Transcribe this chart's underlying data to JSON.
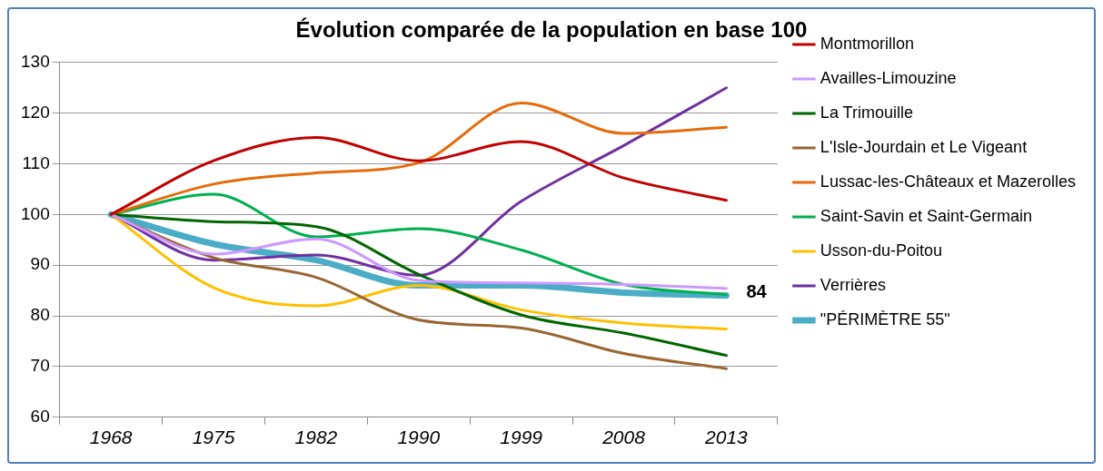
{
  "chart_data": {
    "type": "line",
    "title": "Évolution comparée de la population en base 100",
    "categories": [
      "1968",
      "1975",
      "1982",
      "1990",
      "1999",
      "2008",
      "2013"
    ],
    "ylim": [
      60,
      130
    ],
    "yticks": [
      60,
      70,
      80,
      90,
      100,
      110,
      120,
      130
    ],
    "grid": "y",
    "legend": "right",
    "marker": "none",
    "series": [
      {
        "name": "Montmorillon",
        "color": "#c00000",
        "values": [
          100,
          110.6,
          115.2,
          110.6,
          114.4,
          107.2,
          102.8
        ]
      },
      {
        "name": "Availles-Limouzine",
        "color": "#cc99ff",
        "values": [
          100,
          92.2,
          95.2,
          87,
          86.5,
          86.2,
          85.4
        ]
      },
      {
        "name": "La Trimouille",
        "color": "#006600",
        "values": [
          100,
          98.6,
          97.6,
          88.2,
          80.2,
          76.6,
          72.2
        ]
      },
      {
        "name": "L'Isle-Jourdain et Le Vigeant",
        "color": "#996633",
        "values": [
          100,
          91.5,
          87.6,
          79.2,
          77.6,
          72.6,
          69.6
        ]
      },
      {
        "name": "Lussac-les-Châteaux et Mazerolles",
        "color": "#e46c0a",
        "values": [
          100,
          106,
          108.2,
          110.2,
          122,
          116,
          117.2
        ]
      },
      {
        "name": "Saint-Savin et Saint-Germain",
        "color": "#00b050",
        "values": [
          100,
          104,
          95.6,
          97.2,
          93,
          86.2,
          84.2
        ]
      },
      {
        "name": "Usson-du-Poitou",
        "color": "#ffc000",
        "values": [
          100,
          85.6,
          82,
          86,
          81.2,
          78.6,
          77.4
        ]
      },
      {
        "name": "Verrières",
        "color": "#7030a0",
        "values": [
          100,
          91,
          92,
          88,
          102.6,
          113.6,
          125
        ]
      },
      {
        "name": "\"PÉRIMÈTRE 55\"",
        "color": "#4bacc6",
        "values": [
          100,
          94.2,
          91,
          86,
          86,
          84.6,
          84
        ],
        "value_labels": [
          null,
          null,
          null,
          null,
          null,
          null,
          "84"
        ]
      }
    ]
  }
}
